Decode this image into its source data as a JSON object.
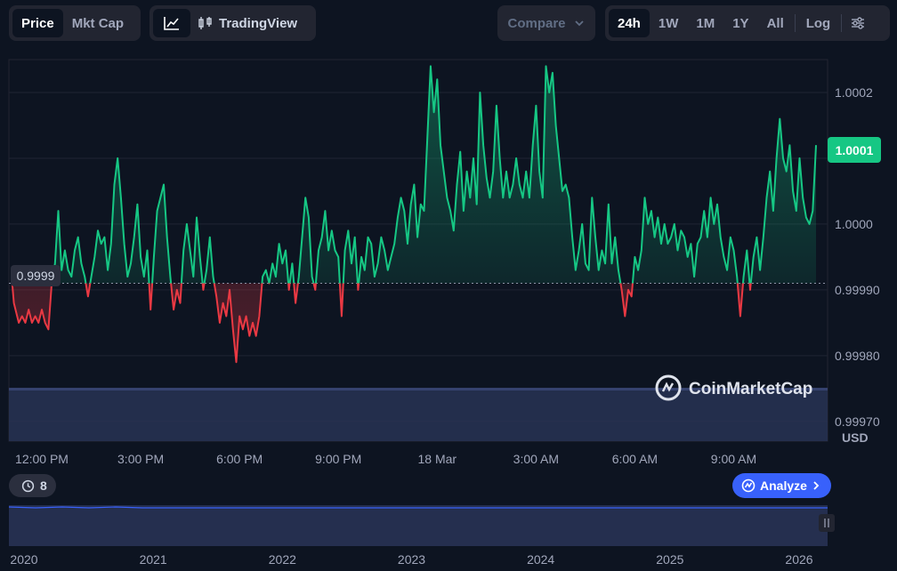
{
  "tabs": {
    "price": "Price",
    "mkt_cap": "Mkt Cap"
  },
  "chart_tools": {
    "tradingview": "TradingView"
  },
  "compare": {
    "label": "Compare"
  },
  "ranges": [
    "24h",
    "1W",
    "1M",
    "1Y",
    "All"
  ],
  "ranges_active": "24h",
  "log_label": "Log",
  "watermark": "CoinMarketCap",
  "current_price_label": "1.0001",
  "baseline_label": "0.9999",
  "currency": "USD",
  "events": {
    "count": "8"
  },
  "analyze": {
    "label": "Analyze"
  },
  "colors": {
    "up": "#16c784",
    "down": "#ea3943",
    "accent": "#3861fb",
    "bg": "#0d1421"
  },
  "chart_data": {
    "type": "line",
    "y_ticks": [
      "1.0002",
      "1.0001",
      "1.0000",
      "0.99990",
      "0.99980",
      "0.99970"
    ],
    "y_tick_values": [
      1.0002,
      1.0001,
      1.0,
      0.9999,
      0.9998,
      0.9997
    ],
    "ylim": [
      0.99967,
      1.00025
    ],
    "baseline": 0.99991,
    "x_ticks": [
      "12:00 PM",
      "3:00 PM",
      "6:00 PM",
      "9:00 PM",
      "18 Mar",
      "3:00 AM",
      "6:00 AM",
      "9:00 AM"
    ],
    "x_tick_hours": [
      0,
      3,
      6,
      9,
      12,
      15,
      18,
      21
    ],
    "xlim_hours": [
      -1,
      23.85
    ],
    "series": [
      {
        "values": [
          [
            -0.9,
            0.99991
          ],
          [
            -0.85,
            0.99988
          ],
          [
            -0.7,
            0.99985
          ],
          [
            -0.6,
            0.99986
          ],
          [
            -0.5,
            0.99985
          ],
          [
            -0.4,
            0.99987
          ],
          [
            -0.3,
            0.99985
          ],
          [
            -0.2,
            0.99986
          ],
          [
            -0.1,
            0.99985
          ],
          [
            0.0,
            0.99987
          ],
          [
            0.1,
            0.99985
          ],
          [
            0.2,
            0.99984
          ],
          [
            0.3,
            0.99991
          ],
          [
            0.4,
            0.99994
          ],
          [
            0.5,
            1.00002
          ],
          [
            0.6,
            0.99993
          ],
          [
            0.7,
            0.99996
          ],
          [
            0.8,
            0.99993
          ],
          [
            0.9,
            0.99992
          ],
          [
            1.0,
            0.99996
          ],
          [
            1.1,
            0.99998
          ],
          [
            1.2,
            0.99994
          ],
          [
            1.3,
            0.99992
          ],
          [
            1.4,
            0.99989
          ],
          [
            1.5,
            0.99992
          ],
          [
            1.6,
            0.99995
          ],
          [
            1.7,
            0.99999
          ],
          [
            1.8,
            0.99997
          ],
          [
            1.9,
            0.99998
          ],
          [
            2.0,
            0.99993
          ],
          [
            2.1,
            0.99997
          ],
          [
            2.2,
            1.00006
          ],
          [
            2.3,
            1.0001
          ],
          [
            2.4,
            1.00004
          ],
          [
            2.5,
            0.99997
          ],
          [
            2.6,
            0.99992
          ],
          [
            2.7,
            0.99994
          ],
          [
            2.8,
            0.99998
          ],
          [
            2.9,
            1.00003
          ],
          [
            3.0,
            0.99995
          ],
          [
            3.1,
            0.99992
          ],
          [
            3.2,
            0.99996
          ],
          [
            3.3,
            0.99987
          ],
          [
            3.4,
            0.99995
          ],
          [
            3.5,
            1.00002
          ],
          [
            3.6,
            1.00004
          ],
          [
            3.7,
            1.00006
          ],
          [
            3.8,
            0.99998
          ],
          [
            3.9,
            0.99992
          ],
          [
            4.0,
            0.99987
          ],
          [
            4.1,
            0.9999
          ],
          [
            4.2,
            0.99988
          ],
          [
            4.3,
            0.99996
          ],
          [
            4.4,
            1.0
          ],
          [
            4.5,
            0.99996
          ],
          [
            4.6,
            0.99992
          ],
          [
            4.7,
            1.00001
          ],
          [
            4.8,
            0.99995
          ],
          [
            4.9,
            0.9999
          ],
          [
            5.0,
            0.99993
          ],
          [
            5.1,
            0.99998
          ],
          [
            5.2,
            0.99992
          ],
          [
            5.3,
            0.99989
          ],
          [
            5.4,
            0.99985
          ],
          [
            5.5,
            0.99988
          ],
          [
            5.6,
            0.99986
          ],
          [
            5.7,
            0.9999
          ],
          [
            5.8,
            0.99984
          ],
          [
            5.9,
            0.99979
          ],
          [
            6.0,
            0.99986
          ],
          [
            6.1,
            0.99984
          ],
          [
            6.2,
            0.99986
          ],
          [
            6.3,
            0.99983
          ],
          [
            6.4,
            0.99985
          ],
          [
            6.5,
            0.99983
          ],
          [
            6.6,
            0.99986
          ],
          [
            6.7,
            0.99992
          ],
          [
            6.8,
            0.99993
          ],
          [
            6.9,
            0.99991
          ],
          [
            7.0,
            0.99994
          ],
          [
            7.1,
            0.99992
          ],
          [
            7.2,
            0.99997
          ],
          [
            7.3,
            0.99994
          ],
          [
            7.4,
            0.99996
          ],
          [
            7.5,
            0.9999
          ],
          [
            7.6,
            0.99994
          ],
          [
            7.7,
            0.99988
          ],
          [
            7.8,
            0.99992
          ],
          [
            7.9,
            0.99998
          ],
          [
            8.0,
            1.00004
          ],
          [
            8.1,
            1.00001
          ],
          [
            8.2,
            0.99992
          ],
          [
            8.3,
            0.9999
          ],
          [
            8.4,
            0.99996
          ],
          [
            8.5,
            0.99998
          ],
          [
            8.6,
            1.00002
          ],
          [
            8.7,
            0.99996
          ],
          [
            8.8,
            0.99999
          ],
          [
            8.9,
            0.99996
          ],
          [
            9.0,
            0.99995
          ],
          [
            9.1,
            0.99986
          ],
          [
            9.2,
            0.99996
          ],
          [
            9.3,
            0.99999
          ],
          [
            9.4,
            0.99994
          ],
          [
            9.5,
            0.99998
          ],
          [
            9.6,
            0.9999
          ],
          [
            9.7,
            0.99995
          ],
          [
            9.8,
            0.99993
          ],
          [
            9.9,
            0.99998
          ],
          [
            10.0,
            0.99997
          ],
          [
            10.1,
            0.99992
          ],
          [
            10.2,
            0.99994
          ],
          [
            10.3,
            0.99998
          ],
          [
            10.4,
            0.99996
          ],
          [
            10.5,
            0.99993
          ],
          [
            10.6,
            0.99995
          ],
          [
            10.7,
            0.99997
          ],
          [
            10.8,
            1.00001
          ],
          [
            10.9,
            1.00004
          ],
          [
            11.0,
            1.00002
          ],
          [
            11.1,
            0.99997
          ],
          [
            11.2,
            1.00003
          ],
          [
            11.3,
            1.00006
          ],
          [
            11.4,
            0.99998
          ],
          [
            11.5,
            1.00003
          ],
          [
            11.6,
            1.00002
          ],
          [
            11.7,
            1.00013
          ],
          [
            11.8,
            1.00024
          ],
          [
            11.9,
            1.00017
          ],
          [
            12.0,
            1.00022
          ],
          [
            12.1,
            1.00012
          ],
          [
            12.2,
            1.00008
          ],
          [
            12.3,
            1.00004
          ],
          [
            12.4,
            1.00002
          ],
          [
            12.5,
            0.99999
          ],
          [
            12.6,
            1.00006
          ],
          [
            12.7,
            1.00011
          ],
          [
            12.8,
            1.00002
          ],
          [
            12.9,
            1.00008
          ],
          [
            13.0,
            1.00004
          ],
          [
            13.1,
            1.0001
          ],
          [
            13.2,
            1.00003
          ],
          [
            13.3,
            1.0002
          ],
          [
            13.4,
            1.00012
          ],
          [
            13.5,
            1.00007
          ],
          [
            13.6,
            1.00004
          ],
          [
            13.7,
            1.00008
          ],
          [
            13.8,
            1.00018
          ],
          [
            13.9,
            1.0001
          ],
          [
            14.0,
            1.00004
          ],
          [
            14.1,
            1.00008
          ],
          [
            14.2,
            1.00004
          ],
          [
            14.3,
            1.00006
          ],
          [
            14.4,
            1.0001
          ],
          [
            14.5,
            1.00006
          ],
          [
            14.6,
            1.00004
          ],
          [
            14.7,
            1.00008
          ],
          [
            14.8,
            1.00004
          ],
          [
            14.9,
            1.00012
          ],
          [
            15.0,
            1.00018
          ],
          [
            15.1,
            1.00008
          ],
          [
            15.2,
            1.00004
          ],
          [
            15.3,
            1.00024
          ],
          [
            15.4,
            1.0002
          ],
          [
            15.5,
            1.00023
          ],
          [
            15.6,
            1.00015
          ],
          [
            15.7,
            1.0001
          ],
          [
            15.8,
            1.00005
          ],
          [
            15.9,
            1.00006
          ],
          [
            16.0,
            1.00004
          ],
          [
            16.1,
            0.99998
          ],
          [
            16.2,
            0.99993
          ],
          [
            16.3,
            0.99996
          ],
          [
            16.4,
            1.0
          ],
          [
            16.5,
            0.99994
          ],
          [
            16.6,
            0.99993
          ],
          [
            16.7,
            1.00004
          ],
          [
            16.8,
            0.99998
          ],
          [
            16.9,
            0.99993
          ],
          [
            17.0,
            0.99996
          ],
          [
            17.1,
            0.99994
          ],
          [
            17.2,
            1.00003
          ],
          [
            17.3,
            0.99994
          ],
          [
            17.4,
            0.99998
          ],
          [
            17.5,
            0.99993
          ],
          [
            17.6,
            0.9999
          ],
          [
            17.7,
            0.99986
          ],
          [
            17.8,
            0.9999
          ],
          [
            17.9,
            0.99989
          ],
          [
            18.0,
            0.99995
          ],
          [
            18.1,
            0.99993
          ],
          [
            18.2,
            0.99996
          ],
          [
            18.3,
            1.00004
          ],
          [
            18.4,
            1.0
          ],
          [
            18.5,
            1.00002
          ],
          [
            18.6,
            0.99998
          ],
          [
            18.7,
            1.00001
          ],
          [
            18.8,
            0.99997
          ],
          [
            18.9,
            1.0
          ],
          [
            19.0,
            0.99997
          ],
          [
            19.1,
            0.99998
          ],
          [
            19.2,
            1.0
          ],
          [
            19.3,
            0.99996
          ],
          [
            19.4,
            0.99999
          ],
          [
            19.5,
            0.99998
          ],
          [
            19.6,
            0.99995
          ],
          [
            19.7,
            0.99997
          ],
          [
            19.8,
            0.99992
          ],
          [
            19.9,
            0.99997
          ],
          [
            20.0,
            0.99998
          ],
          [
            20.1,
            1.00002
          ],
          [
            20.2,
            0.99998
          ],
          [
            20.3,
            1.00004
          ],
          [
            20.4,
            1.0
          ],
          [
            20.5,
            1.00003
          ],
          [
            20.6,
            0.99998
          ],
          [
            20.7,
            0.99995
          ],
          [
            20.8,
            0.99993
          ],
          [
            20.9,
            0.99998
          ],
          [
            21.0,
            0.99996
          ],
          [
            21.1,
            0.99992
          ],
          [
            21.2,
            0.99986
          ],
          [
            21.3,
            0.99992
          ],
          [
            21.4,
            0.99996
          ],
          [
            21.5,
            0.9999
          ],
          [
            21.6,
            0.99995
          ],
          [
            21.7,
            0.99998
          ],
          [
            21.8,
            0.99993
          ],
          [
            21.9,
            0.99998
          ],
          [
            22.0,
            1.00004
          ],
          [
            22.1,
            1.00008
          ],
          [
            22.2,
            1.00002
          ],
          [
            22.3,
            1.0001
          ],
          [
            22.4,
            1.00016
          ],
          [
            22.5,
            1.0001
          ],
          [
            22.6,
            1.00008
          ],
          [
            22.7,
            1.00012
          ],
          [
            22.8,
            1.00005
          ],
          [
            22.9,
            1.00002
          ],
          [
            23.0,
            1.0001
          ],
          [
            23.1,
            1.00004
          ],
          [
            23.2,
            1.00001
          ],
          [
            23.3,
            1.0
          ],
          [
            23.4,
            1.00002
          ],
          [
            23.5,
            1.00012
          ]
        ]
      }
    ],
    "volume_label": "",
    "navigator_ticks": [
      "2020",
      "2021",
      "2022",
      "2023",
      "2024",
      "2025",
      "2026"
    ]
  }
}
